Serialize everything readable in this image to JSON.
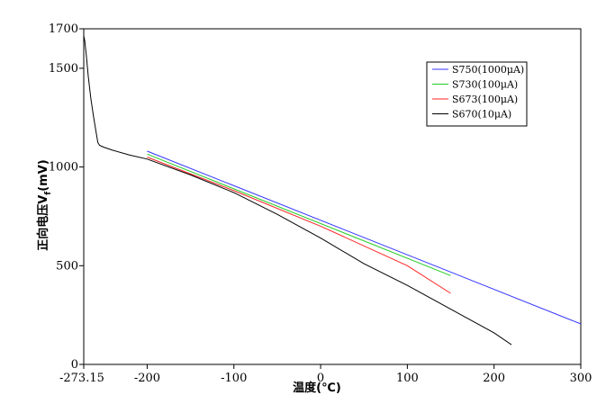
{
  "chart_data": {
    "type": "line",
    "title": "",
    "xlabel": "温度(℃)",
    "ylabel_main": "正向电压V",
    "ylabel_sub": "f",
    "ylabel_unit": "(mV)",
    "xlim": [
      -273.15,
      300
    ],
    "ylim": [
      0,
      1700
    ],
    "x_ticks": [
      {
        "value": -273.15,
        "label": "-273.15"
      },
      {
        "value": -200,
        "label": "-200"
      },
      {
        "value": -100,
        "label": "-100"
      },
      {
        "value": 0,
        "label": "0"
      },
      {
        "value": 100,
        "label": "100"
      },
      {
        "value": 200,
        "label": "200"
      },
      {
        "value": 300,
        "label": "300"
      }
    ],
    "y_ticks": [
      {
        "value": 0,
        "label": "0"
      },
      {
        "value": 500,
        "label": "500"
      },
      {
        "value": 1000,
        "label": "1000"
      },
      {
        "value": 1500,
        "label": "1500"
      },
      {
        "value": 1700,
        "label": "1700"
      }
    ],
    "legend_position": "top-right",
    "series": [
      {
        "name": "S750(1000μA)",
        "color": "#3333ff",
        "x": [
          -200,
          300
        ],
        "y": [
          1080,
          205
        ]
      },
      {
        "name": "S730(100μA)",
        "color": "#22cc22",
        "x": [
          -200,
          150
        ],
        "y": [
          1065,
          450
        ]
      },
      {
        "name": "S673(100μA)",
        "color": "#ff2222",
        "x": [
          -200,
          -100,
          0,
          100,
          150
        ],
        "y": [
          1050,
          880,
          700,
          500,
          360
        ]
      },
      {
        "name": "S670(10μA)",
        "color": "#000000",
        "x": [
          -273.15,
          -272,
          -270,
          -268,
          -265,
          -262,
          -259,
          -257,
          -255,
          -250,
          -240,
          -220,
          -200,
          -150,
          -100,
          -50,
          0,
          50,
          100,
          150,
          200,
          220
        ],
        "y": [
          1665,
          1640,
          1560,
          1460,
          1350,
          1260,
          1180,
          1125,
          1110,
          1100,
          1085,
          1060,
          1040,
          960,
          870,
          760,
          640,
          510,
          400,
          280,
          160,
          100
        ]
      }
    ]
  }
}
